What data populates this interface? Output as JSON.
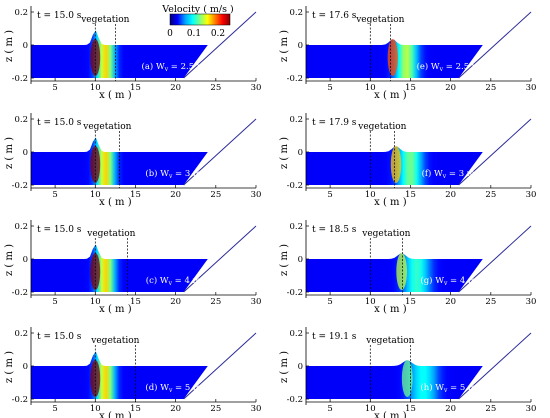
{
  "colorbar": {
    "title": "Velocity ( m/s )",
    "ticks": [
      {
        "value": 0,
        "label": "0"
      },
      {
        "value": 0.1,
        "label": "0.1"
      },
      {
        "value": 0.2,
        "label": "0.2"
      }
    ],
    "range": [
      0,
      0.25
    ],
    "colors": [
      "#00007a",
      "#0000ff",
      "#00a0ff",
      "#00ffff",
      "#7fff7f",
      "#ffff00",
      "#ff8000",
      "#ff0000",
      "#800000"
    ]
  },
  "axes": {
    "xlabel": "x ( m )",
    "ylabel": "z ( m )",
    "xlim": [
      2,
      30
    ],
    "ylim": [
      -0.2,
      0.2
    ],
    "xticks": [
      {
        "value": 5,
        "label": "5"
      },
      {
        "value": 10,
        "label": "10"
      },
      {
        "value": 15,
        "label": "15"
      },
      {
        "value": 20,
        "label": "20"
      },
      {
        "value": 25,
        "label": "25"
      },
      {
        "value": 30,
        "label": "30"
      }
    ],
    "yticks": [
      {
        "value": 0.2,
        "label": "0.2"
      },
      {
        "value": 0,
        "label": "0"
      },
      {
        "value": -0.2,
        "label": "-0.2"
      }
    ],
    "slope_start_x": 21,
    "slope_end_x": 30,
    "slope_end_z": 0.2,
    "water_color": "#1f3cb8",
    "slope_line_color": "#2b2b9a"
  },
  "panels": [
    {
      "id": "a",
      "time": "t = 15.0 s",
      "vegetation_label": "vegetation",
      "caption": "(a) W",
      "sub": "v",
      "caption_tail": " = 2.5 m",
      "veg_start": 10,
      "veg_end": 12.5,
      "peak_x": 10,
      "peak_velocity": 0.25,
      "spread": 0.9
    },
    {
      "id": "b",
      "time": "t = 15.0 s",
      "vegetation_label": "vegetation",
      "caption": "(b) W",
      "sub": "v",
      "caption_tail": " = 3 m",
      "veg_start": 10,
      "veg_end": 13,
      "peak_x": 10,
      "peak_velocity": 0.25,
      "spread": 0.9
    },
    {
      "id": "c",
      "time": "t = 15.0 s",
      "vegetation_label": "vegetation",
      "caption": "(c) W",
      "sub": "v",
      "caption_tail": " = 4 m",
      "veg_start": 10,
      "veg_end": 14,
      "peak_x": 10,
      "peak_velocity": 0.25,
      "spread": 0.9
    },
    {
      "id": "d",
      "time": "t = 15.0 s",
      "vegetation_label": "vegetation",
      "caption": "(d) W",
      "sub": "v",
      "caption_tail": " = 5 m",
      "veg_start": 10,
      "veg_end": 15,
      "peak_x": 10,
      "peak_velocity": 0.25,
      "spread": 0.9
    },
    {
      "id": "e",
      "time": "t = 17.6 s",
      "vegetation_label": "vegetation",
      "caption": "(e) W",
      "sub": "v",
      "caption_tail": " = 2.5 m",
      "veg_start": 10,
      "veg_end": 12.5,
      "peak_x": 12.8,
      "peak_velocity": 0.2,
      "spread": 1.1
    },
    {
      "id": "f",
      "time": "t = 17.9 s",
      "vegetation_label": "vegetation",
      "caption": "(f) W",
      "sub": "v",
      "caption_tail": " = 3 m",
      "veg_start": 10,
      "veg_end": 13,
      "peak_x": 13.2,
      "peak_velocity": 0.17,
      "spread": 1.2
    },
    {
      "id": "g",
      "time": "t = 18.5 s",
      "vegetation_label": "vegetation",
      "caption": "(g) W",
      "sub": "v",
      "caption_tail": " = 4 m",
      "veg_start": 10,
      "veg_end": 14,
      "peak_x": 13.9,
      "peak_velocity": 0.14,
      "spread": 1.3
    },
    {
      "id": "h",
      "time": "t = 19.1 s",
      "vegetation_label": "vegetation",
      "caption": "(h) W",
      "sub": "v",
      "caption_tail": " = 5 m",
      "veg_start": 10,
      "veg_end": 15,
      "peak_x": 14.6,
      "peak_velocity": 0.12,
      "spread": 1.4
    }
  ]
}
